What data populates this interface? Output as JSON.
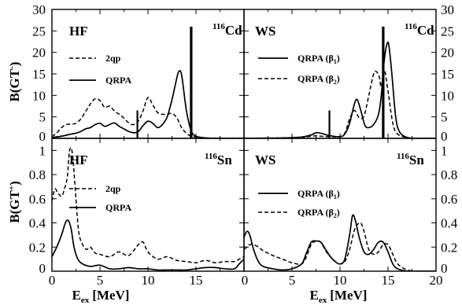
{
  "chart_data": {
    "type": "line",
    "x_label": "E",
    "x_label_sub": "ex",
    "x_label_unit": "[MeV]",
    "y_label_top": "B(GT",
    "y_label_top_sup": "-",
    "y_label_bottom": "B(GT",
    "y_label_bottom_sup": "+",
    "x_ticks": [
      "0",
      "5",
      "10",
      "15",
      "20"
    ],
    "y_ticks_top": [
      "0",
      "5",
      "10",
      "15",
      "20",
      "25",
      "30"
    ],
    "y_ticks_bottom": [
      "0",
      "0.2",
      "0.4",
      "0.6",
      "0.8",
      "1"
    ],
    "panels": [
      {
        "id": "top-left",
        "method": "HF",
        "nucleus_mass": "116",
        "nucleus_symbol": "Cd",
        "xlim": [
          0,
          20
        ],
        "ylim": [
          0,
          30
        ],
        "legend": [
          {
            "label": "2qp",
            "style": "dashed"
          },
          {
            "label": "QRPA",
            "style": "solid"
          }
        ],
        "series": [
          {
            "name": "2qp",
            "style": "dashed",
            "x": [
              0,
              0.5,
              1,
              1.5,
              2,
              2.5,
              3,
              3.5,
              4,
              4.5,
              5,
              5.5,
              6,
              6.5,
              7,
              7.5,
              8,
              8.5,
              9,
              9.5,
              10,
              10.5,
              11,
              11.5,
              12,
              12.5,
              13,
              13.5,
              14,
              14.5,
              15,
              16,
              17,
              18,
              19,
              20
            ],
            "y": [
              0.4,
              1.3,
              2.5,
              3.2,
              3.3,
              3.5,
              4.5,
              6.2,
              8.0,
              9.2,
              8.8,
              7.2,
              7.5,
              6.4,
              5.6,
              4.7,
              3.6,
              3.2,
              4.0,
              6.5,
              9.5,
              7.8,
              6.0,
              5.6,
              5.6,
              5.8,
              4.8,
              2.5,
              1.2,
              0.5,
              0.3,
              0.1,
              0.05,
              0,
              0.02,
              0.1
            ]
          },
          {
            "name": "QRPA",
            "style": "solid",
            "x": [
              0,
              1,
              2,
              2.5,
              3,
              3.5,
              4,
              4.5,
              5,
              5.5,
              6,
              6.5,
              7,
              7.5,
              8,
              8.5,
              9,
              9.5,
              10,
              10.5,
              11,
              11.5,
              12,
              12.5,
              13,
              13.2,
              13.5,
              14,
              14.5,
              15,
              16,
              17,
              18,
              19,
              20
            ],
            "y": [
              0.2,
              0.5,
              1.0,
              1.2,
              1.6,
              2.2,
              2.5,
              3.2,
              3.5,
              2.8,
              3.2,
              3.6,
              2.8,
              2.2,
              1.6,
              1.3,
              1.6,
              3.0,
              4.0,
              3.5,
              2.5,
              3.2,
              5.0,
              9.0,
              14.0,
              15.5,
              14.8,
              6.5,
              1.8,
              0.5,
              0.1,
              0.02,
              0,
              0,
              0
            ]
          },
          {
            "name": "spikes",
            "style": "vline",
            "x": [
              8.9,
              14.5
            ],
            "y": [
              6.5,
              26.0
            ]
          }
        ]
      },
      {
        "id": "top-right",
        "method": "WS",
        "nucleus_mass": "116",
        "nucleus_symbol": "Cd",
        "xlim": [
          0,
          20
        ],
        "ylim": [
          0,
          30
        ],
        "legend": [
          {
            "label": "QRPA (β",
            "sub": "1",
            "suffix": ")",
            "style": "solid"
          },
          {
            "label": "QRPA (β",
            "sub": "2",
            "suffix": ")",
            "style": "dashed"
          }
        ],
        "series": [
          {
            "name": "QRPA (β1)",
            "style": "solid",
            "x": [
              0,
              2,
              4,
              6,
              7,
              7.5,
              8,
              9,
              10,
              10.5,
              11,
              11.5,
              11.8,
              12.2,
              12.6,
              13,
              13.5,
              14,
              14.3,
              14.6,
              14.9,
              15.1,
              15.4,
              15.8,
              16.2,
              17,
              18,
              19,
              20
            ],
            "y": [
              0,
              0.05,
              0.1,
              0.3,
              0.8,
              1.3,
              1.2,
              0.6,
              0.4,
              1.0,
              3.5,
              8.0,
              9.0,
              6.2,
              3.0,
              2.5,
              3.2,
              5.5,
              10.0,
              18.0,
              22.0,
              21.5,
              15.0,
              5.0,
              1.5,
              0.2,
              0,
              0,
              0
            ]
          },
          {
            "name": "QRPA (β2)",
            "style": "dashed",
            "x": [
              0,
              2,
              4,
              6,
              7,
              7.5,
              8,
              9,
              10,
              10.5,
              11,
              11.5,
              12,
              12.5,
              13,
              13.5,
              13.8,
              14.1,
              14.3,
              14.6,
              15,
              15.5,
              16,
              17,
              18,
              19,
              20
            ],
            "y": [
              0,
              0.05,
              0.1,
              0.25,
              0.5,
              0.6,
              0.5,
              0.4,
              0.4,
              1.2,
              4.5,
              6.5,
              4.8,
              5.2,
              10.0,
              15.0,
              15.5,
              14.2,
              12.0,
              16.0,
              11.0,
              3.5,
              1.0,
              0.2,
              0,
              0,
              0
            ]
          },
          {
            "name": "spikes",
            "style": "vline",
            "x": [
              8.9,
              14.5
            ],
            "y": [
              6.5,
              26.0
            ]
          }
        ]
      },
      {
        "id": "bottom-left",
        "method": "HF",
        "nucleus_mass": "116",
        "nucleus_symbol": "Sn",
        "xlim": [
          0,
          20
        ],
        "ylim": [
          0,
          1.1
        ],
        "legend": [
          {
            "label": "2qp",
            "style": "dashed"
          },
          {
            "label": "QRPA",
            "style": "solid"
          }
        ],
        "series": [
          {
            "name": "2qp",
            "style": "dashed",
            "x": [
              0,
              0.3,
              0.6,
              1.0,
              1.3,
              1.6,
              1.8,
              2.0,
              2.2,
              2.5,
              2.8,
              3.2,
              3.6,
              4.0,
              4.5,
              5,
              6,
              7,
              8,
              9,
              9.5,
              10,
              11,
              12,
              13,
              14,
              15,
              16,
              17,
              18,
              19,
              19.5,
              20
            ],
            "y": [
              0.58,
              0.68,
              0.65,
              0.62,
              0.68,
              0.78,
              0.98,
              1.02,
              0.92,
              0.6,
              0.32,
              0.22,
              0.18,
              0.2,
              0.15,
              0.14,
              0.12,
              0.16,
              0.13,
              0.22,
              0.24,
              0.16,
              0.1,
              0.12,
              0.09,
              0.08,
              0.07,
              0.09,
              0.07,
              0.08,
              0.08,
              0.1,
              0.12
            ]
          },
          {
            "name": "QRPA",
            "style": "solid",
            "x": [
              0,
              0.5,
              1.0,
              1.4,
              1.7,
              2.0,
              2.3,
              2.7,
              3.2,
              4,
              5,
              6,
              7,
              8,
              9,
              10,
              11,
              12,
              13,
              14,
              15,
              16,
              17,
              18,
              19,
              19.5,
              20
            ],
            "y": [
              0.12,
              0.2,
              0.3,
              0.4,
              0.42,
              0.35,
              0.2,
              0.1,
              0.06,
              0.04,
              0.05,
              0.02,
              0.02,
              0.03,
              0.02,
              0.02,
              0.01,
              0.01,
              0.01,
              0.01,
              0.02,
              0.03,
              0.03,
              0.02,
              0.02,
              0.06,
              0.1
            ]
          }
        ]
      },
      {
        "id": "bottom-right",
        "method": "WS",
        "nucleus_mass": "116",
        "nucleus_symbol": "Sn",
        "xlim": [
          0,
          20
        ],
        "ylim": [
          0,
          1.1
        ],
        "legend": [
          {
            "label": "QRPA (β",
            "sub": "1",
            "suffix": ")",
            "style": "solid"
          },
          {
            "label": "QRPA (β",
            "sub": "2",
            "suffix": ")",
            "style": "dashed"
          }
        ],
        "series": [
          {
            "name": "QRPA (β1)",
            "style": "solid",
            "x": [
              0,
              0.3,
              0.6,
              1.0,
              1.5,
              2,
              3,
              4,
              5,
              6,
              6.5,
              7,
              7.5,
              8,
              8.5,
              9,
              9.5,
              10,
              10.5,
              11,
              11.3,
              11.6,
              12,
              12.5,
              13,
              13.5,
              14,
              14.5,
              15,
              15.5,
              16,
              17,
              18,
              19,
              20
            ],
            "y": [
              0.28,
              0.33,
              0.3,
              0.18,
              0.08,
              0.04,
              0.02,
              0.01,
              0.02,
              0.06,
              0.15,
              0.24,
              0.25,
              0.24,
              0.18,
              0.12,
              0.08,
              0.06,
              0.1,
              0.3,
              0.46,
              0.42,
              0.28,
              0.16,
              0.14,
              0.18,
              0.24,
              0.24,
              0.16,
              0.06,
              0.02,
              0,
              0,
              0,
              0
            ]
          },
          {
            "name": "QRPA (β2)",
            "style": "dashed",
            "x": [
              0,
              0.3,
              0.6,
              1.0,
              1.5,
              2,
              3,
              4,
              5,
              6,
              6.5,
              7,
              7.5,
              8,
              8.5,
              9,
              9.5,
              10,
              10.5,
              11,
              11.5,
              12,
              12.3,
              12.6,
              13,
              13.5,
              14,
              14.5,
              15,
              15.5,
              16,
              17,
              18,
              19,
              20
            ],
            "y": [
              0.18,
              0.2,
              0.22,
              0.22,
              0.2,
              0.17,
              0.13,
              0.1,
              0.07,
              0.06,
              0.12,
              0.22,
              0.25,
              0.24,
              0.17,
              0.12,
              0.08,
              0.06,
              0.08,
              0.18,
              0.34,
              0.4,
              0.38,
              0.3,
              0.18,
              0.14,
              0.16,
              0.22,
              0.22,
              0.14,
              0.06,
              0.01,
              0,
              0,
              0
            ]
          }
        ]
      }
    ]
  }
}
